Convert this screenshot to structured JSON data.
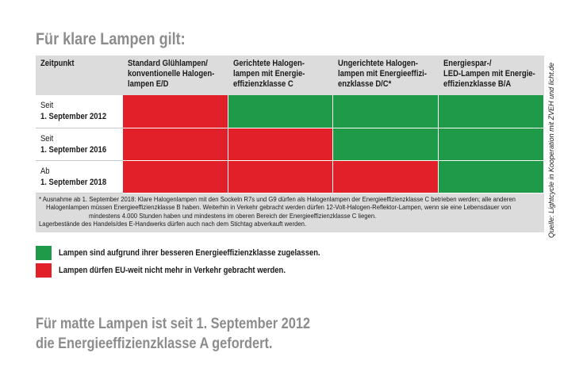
{
  "title": "Für klare Lampen gilt:",
  "table": {
    "header": [
      [
        "Zeitpunkt"
      ],
      [
        "Standard Glühlampen/",
        "konventionelle Halogen-",
        "lampen E/D"
      ],
      [
        "Gerichtete Halogen-",
        "lampen mit Energie-",
        "effizienzklasse C"
      ],
      [
        "Ungerichtete Halogen-",
        "lampen mit Energieeffizi-",
        "enzklasse D/C*"
      ],
      [
        "Energiespar-/",
        "LED-Lampen mit Energie-",
        "effizienzklasse B/A"
      ]
    ],
    "rows": [
      {
        "label": [
          "Seit",
          "1. September 2012"
        ],
        "cells": [
          "red",
          "green",
          "green",
          "green"
        ]
      },
      {
        "label": [
          "Seit",
          "1. September 2016"
        ],
        "cells": [
          "red",
          "red",
          "green",
          "green"
        ]
      },
      {
        "label": [
          "Ab",
          "1. September 2018"
        ],
        "cells": [
          "red",
          "red",
          "red",
          "green"
        ]
      }
    ]
  },
  "footnote": [
    "* Ausnahme ab 1. September 2018: Klare Halogenlampen mit den Sockeln R7s und G9 dürfen als Halogenlampen der Energieeffizienzklasse C betrieben werden; alle anderen",
    "Halogenlampen müssen Energieeffizienzklasse B haben. Weiterhin in Verkehr gebracht werden dürfen 12-Volt-Halogen-Reflektor-Lampen, wenn sie eine Lebensdauer von",
    "mindestens 4.000 Stunden haben und mindestens im oberen Bereich der Energieeffizienzklasse C liegen.",
    "Lagerbestände des Handels/des E-Handwerks dürfen auch nach dem Stichtag abverkauft werden."
  ],
  "status_colors": {
    "green": "#1e9a48",
    "red": "#e2202a"
  },
  "legend": [
    {
      "status": "green",
      "label": "Lampen sind aufgrund ihrer besseren Energieeffizienzklasse zugelassen."
    },
    {
      "status": "red",
      "label": "Lampen dürfen EU-weit nicht mehr in Verkehr gebracht werden."
    }
  ],
  "note": [
    "Für matte Lampen ist seit 1. September 2012",
    "die Energieeffizienzklasse A gefordert."
  ],
  "source": "Quelle: Lightcycle in Kooperation mit ZVEH und licht.de"
}
